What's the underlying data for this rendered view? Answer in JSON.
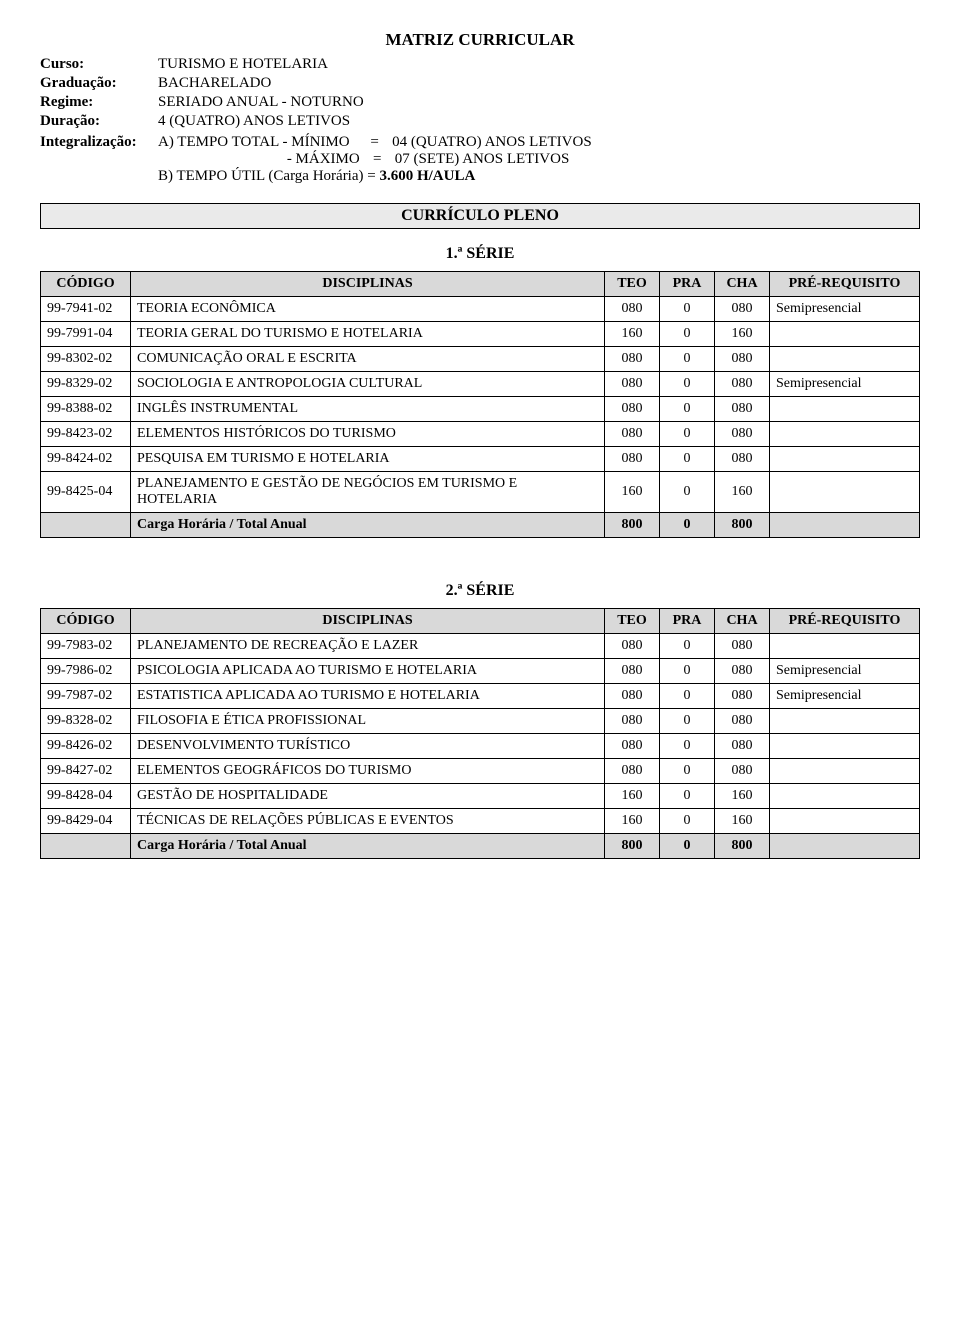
{
  "title": "MATRIZ CURRICULAR",
  "info": {
    "curso_label": "Curso:",
    "curso_value": "TURISMO E HOTELARIA",
    "graduacao_label": "Graduação:",
    "graduacao_value": "BACHARELADO",
    "regime_label": "Regime:",
    "regime_value": "SERIADO ANUAL  - NOTURNO",
    "duracao_label": "Duração:",
    "duracao_value": "4 (QUATRO) ANOS LETIVOS",
    "integral_label": "Integralização:",
    "integral_a": "A) TEMPO TOTAL  - MÍNIMO",
    "integral_a_eq": "=",
    "integral_a_val": "04 (QUATRO) ANOS LETIVOS",
    "integral_a2_pad": "",
    "integral_a2": "                                   - MÁXIMO",
    "integral_a2_eq": "=",
    "integral_a2_val": "07 (SETE) ANOS LETIVOS",
    "integral_b_pre": "B) TEMPO ÚTIL (Carga Horária) = ",
    "integral_b_val": "3.600 H/AULA"
  },
  "curriculo_bar": "CURRÍCULO PLENO",
  "headers": {
    "codigo": "CÓDIGO",
    "disc": "DISCIPLINAS",
    "teo": "TEO",
    "pra": "PRA",
    "cha": "CHA",
    "pre": "PRÉ-REQUISITO"
  },
  "serie1": {
    "title": "1.ª SÉRIE",
    "rows": [
      {
        "codigo": "99-7941-02",
        "disc": "TEORIA ECONÔMICA",
        "teo": "080",
        "pra": "0",
        "cha": "080",
        "pre": "Semipresencial"
      },
      {
        "codigo": "99-7991-04",
        "disc": "TEORIA GERAL DO TURISMO E HOTELARIA",
        "teo": "160",
        "pra": "0",
        "cha": "160",
        "pre": ""
      },
      {
        "codigo": "99-8302-02",
        "disc": "COMUNICAÇÃO ORAL E ESCRITA",
        "teo": "080",
        "pra": "0",
        "cha": "080",
        "pre": ""
      },
      {
        "codigo": "99-8329-02",
        "disc": "SOCIOLOGIA E ANTROPOLOGIA CULTURAL",
        "teo": "080",
        "pra": "0",
        "cha": "080",
        "pre": "Semipresencial"
      },
      {
        "codigo": "99-8388-02",
        "disc": "INGLÊS INSTRUMENTAL",
        "teo": "080",
        "pra": "0",
        "cha": "080",
        "pre": ""
      },
      {
        "codigo": "99-8423-02",
        "disc": "ELEMENTOS HISTÓRICOS DO TURISMO",
        "teo": "080",
        "pra": "0",
        "cha": "080",
        "pre": ""
      },
      {
        "codigo": "99-8424-02",
        "disc": "PESQUISA EM TURISMO E HOTELARIA",
        "teo": "080",
        "pra": "0",
        "cha": "080",
        "pre": ""
      },
      {
        "codigo": "99-8425-04",
        "disc": "PLANEJAMENTO E GESTÃO DE NEGÓCIOS EM TURISMO E HOTELARIA",
        "teo": "160",
        "pra": "0",
        "cha": "160",
        "pre": ""
      }
    ],
    "total": {
      "disc": "Carga Horária / Total Anual",
      "teo": "800",
      "pra": "0",
      "cha": "800",
      "pre": ""
    }
  },
  "serie2": {
    "title": "2.ª SÉRIE",
    "rows": [
      {
        "codigo": "99-7983-02",
        "disc": "PLANEJAMENTO DE RECREAÇÃO E LAZER",
        "teo": "080",
        "pra": "0",
        "cha": "080",
        "pre": ""
      },
      {
        "codigo": "99-7986-02",
        "disc": "PSICOLOGIA APLICADA AO TURISMO E HOTELARIA",
        "teo": "080",
        "pra": "0",
        "cha": "080",
        "pre": "Semipresencial"
      },
      {
        "codigo": "99-7987-02",
        "disc": "ESTATISTICA APLICADA AO TURISMO E HOTELARIA",
        "teo": "080",
        "pra": "0",
        "cha": "080",
        "pre": "Semipresencial"
      },
      {
        "codigo": "99-8328-02",
        "disc": "FILOSOFIA E ÉTICA PROFISSIONAL",
        "teo": "080",
        "pra": "0",
        "cha": "080",
        "pre": ""
      },
      {
        "codigo": "99-8426-02",
        "disc": "DESENVOLVIMENTO TURÍSTICO",
        "teo": "080",
        "pra": "0",
        "cha": "080",
        "pre": ""
      },
      {
        "codigo": "99-8427-02",
        "disc": "ELEMENTOS GEOGRÁFICOS DO TURISMO",
        "teo": "080",
        "pra": "0",
        "cha": "080",
        "pre": ""
      },
      {
        "codigo": "99-8428-04",
        "disc": "GESTÃO DE HOSPITALIDADE",
        "teo": "160",
        "pra": "0",
        "cha": "160",
        "pre": ""
      },
      {
        "codigo": "99-8429-04",
        "disc": "TÉCNICAS DE RELAÇÕES PÚBLICAS E EVENTOS",
        "teo": "160",
        "pra": "0",
        "cha": "160",
        "pre": ""
      }
    ],
    "total": {
      "disc": "Carga Horária / Total Anual",
      "teo": "800",
      "pra": "0",
      "cha": "800",
      "pre": ""
    }
  },
  "colors": {
    "header_bg": "#d9d9d9",
    "bar_bg": "#eaeaea",
    "border": "#000000",
    "text": "#000000",
    "page_bg": "#ffffff"
  }
}
